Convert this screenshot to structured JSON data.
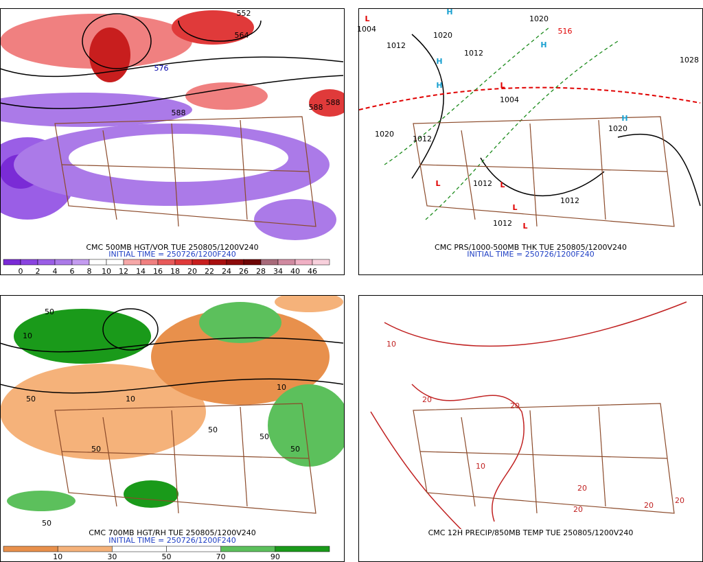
{
  "panels": [
    {
      "caption": "CMC 500MB HGT/VOR TUE 250805/1200V240",
      "initial_time": "INITIAL TIME = 250726/1200F240",
      "colorbar": {
        "labels": [
          "0",
          "2",
          "4",
          "6",
          "8",
          "10",
          "12",
          "14",
          "16",
          "18",
          "20",
          "22",
          "24",
          "26",
          "28",
          "34",
          "40",
          "46"
        ],
        "colors": [
          "#7a2bd6",
          "#8a44e0",
          "#9a5ee6",
          "#ab7ae8",
          "#c49cf0",
          "#ffffff",
          "#ffffff",
          "#f6a8a8",
          "#f08080",
          "#e85a5a",
          "#e03a3a",
          "#c81e1e",
          "#a80f0f",
          "#8c0a0a",
          "#6e0606",
          "#a86a7a",
          "#d08aa0",
          "#f0b0c4",
          "#f8d0dc"
        ]
      },
      "map_labels": [
        "552",
        "564",
        "576",
        "588",
        "588",
        "588"
      ]
    },
    {
      "caption": "CMC PRS/1000-500MB THK TUE 250805/1200V240",
      "initial_time": "INITIAL TIME = 250726/1200F240",
      "map_labels": [
        "L",
        "H",
        "H",
        "H",
        "H",
        "L",
        "L",
        "L",
        "L",
        "L",
        "H",
        "1004",
        "1012",
        "1020",
        "1020",
        "1012",
        "1004",
        "1012",
        "1012",
        "1020",
        "1028",
        "1012",
        "1012",
        "1020",
        "516"
      ]
    },
    {
      "caption": "CMC 700MB HGT/RH TUE 250805/1200V240",
      "initial_time": "INITIAL TIME = 250726/1200F240",
      "colorbar": {
        "labels": [
          "10",
          "30",
          "50",
          "70",
          "90"
        ],
        "colors": [
          "#e8904c",
          "#f5b27a",
          "#ffffff",
          "#ffffff",
          "#5cc05c",
          "#1a9a1a"
        ]
      },
      "map_labels": [
        "50",
        "10",
        "50",
        "10",
        "50",
        "50",
        "10",
        "50",
        "50",
        "50"
      ]
    },
    {
      "caption": "CMC 12H PRECIP/850MB TEMP TUE 250805/1200V240",
      "map_labels": [
        "10",
        "20",
        "20",
        "20",
        "10",
        "20",
        "20",
        "20"
      ]
    }
  ]
}
